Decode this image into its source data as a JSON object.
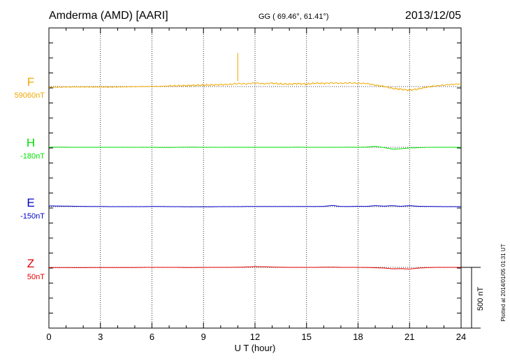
{
  "header": {
    "station": "Amderma (AMD)  [AARI]",
    "coords": "GG ( 69.46°,  61.41°)",
    "date": "2013/12/05"
  },
  "footer": {
    "plotted": "Plotted at 2014/01/05 01:31  UT"
  },
  "chart_data": {
    "type": "line",
    "xlabel": "U T (hour)",
    "xlim": [
      0,
      24
    ],
    "xticks": [
      "0",
      "3",
      "6",
      "9",
      "12",
      "15",
      "18",
      "21",
      "24"
    ],
    "scale_bar_label": "500 nT",
    "series": [
      {
        "name": "F",
        "baseline_label": "59060nT",
        "color": "#f0a800",
        "x": [
          0,
          0.5,
          1,
          1.5,
          2,
          2.5,
          3,
          3.5,
          4,
          4.5,
          5,
          5.5,
          6,
          6.5,
          7,
          7.5,
          8,
          8.5,
          9,
          9.5,
          10,
          10.5,
          11,
          11.5,
          12,
          12.5,
          13,
          13.5,
          14,
          14.5,
          15,
          15.5,
          16,
          16.5,
          17,
          17.5,
          18,
          18.5,
          19,
          19.5,
          20,
          20.5,
          21,
          21.5,
          22,
          22.5,
          23,
          23.5,
          24
        ],
        "values": [
          -5,
          -5,
          -4,
          -3,
          -3,
          -3,
          -3,
          -4,
          -3,
          -2,
          -1,
          1,
          1,
          2,
          5,
          6,
          8,
          10,
          12,
          13,
          16,
          17,
          25,
          22,
          30,
          23,
          28,
          22,
          20,
          25,
          20,
          28,
          26,
          30,
          27,
          30,
          28,
          25,
          12,
          2,
          -15,
          -22,
          -30,
          -20,
          -5,
          5,
          12,
          18,
          22
        ]
      },
      {
        "name": "H",
        "baseline_label": "-180nT",
        "color": "#00e000",
        "x": [
          0,
          0.5,
          1,
          1.5,
          2,
          2.5,
          3,
          3.5,
          4,
          4.5,
          5,
          5.5,
          6,
          6.5,
          7,
          7.5,
          8,
          8.5,
          9,
          9.5,
          10,
          10.5,
          11,
          11.5,
          12,
          12.5,
          13,
          13.5,
          14,
          14.5,
          15,
          15.5,
          16,
          16.5,
          17,
          17.5,
          18,
          18.5,
          19,
          19.5,
          20,
          20.5,
          21,
          21.5,
          22,
          22.5,
          23,
          23.5,
          24
        ],
        "values": [
          2,
          1,
          1,
          0,
          0,
          0,
          0,
          0,
          0,
          0,
          0,
          0,
          0,
          -1,
          -1,
          0,
          1,
          1,
          0,
          0,
          0,
          0,
          0,
          0,
          0,
          0,
          0,
          0,
          0,
          1,
          0,
          0,
          0,
          0,
          0,
          1,
          0,
          2,
          8,
          -2,
          -15,
          -12,
          -5,
          -3,
          0,
          0,
          0,
          0,
          0
        ]
      },
      {
        "name": "E",
        "baseline_label": "-150nT",
        "color": "#0000c8",
        "x": [
          0,
          0.5,
          1,
          1.5,
          2,
          2.5,
          3,
          3.5,
          4,
          4.5,
          5,
          5.5,
          6,
          6.5,
          7,
          7.5,
          8,
          8.5,
          9,
          9.5,
          10,
          10.5,
          11,
          11.5,
          12,
          12.5,
          13,
          13.5,
          14,
          14.5,
          15,
          15.5,
          16,
          16.5,
          17,
          17.5,
          18,
          18.5,
          19,
          19.5,
          20,
          20.5,
          21,
          21.5,
          22,
          22.5,
          23,
          23.5,
          24
        ],
        "values": [
          6,
          5,
          4,
          3,
          2,
          1,
          1,
          0,
          0,
          0,
          0,
          0,
          1,
          1,
          0,
          0,
          -1,
          -1,
          -1,
          -1,
          0,
          0,
          0,
          1,
          1,
          1,
          1,
          1,
          1,
          1,
          1,
          1,
          2,
          10,
          1,
          1,
          3,
          2,
          8,
          4,
          8,
          3,
          8,
          3,
          2,
          1,
          0,
          0,
          0
        ]
      },
      {
        "name": "Z",
        "baseline_label": "50nT",
        "color": "#e00000",
        "x": [
          0,
          0.5,
          1,
          1.5,
          2,
          2.5,
          3,
          3.5,
          4,
          4.5,
          5,
          5.5,
          6,
          6.5,
          7,
          7.5,
          8,
          8.5,
          9,
          9.5,
          10,
          10.5,
          11,
          11.5,
          12,
          12.5,
          13,
          13.5,
          14,
          14.5,
          15,
          15.5,
          16,
          16.5,
          17,
          17.5,
          18,
          18.5,
          19,
          19.5,
          20,
          20.5,
          21,
          21.5,
          22,
          22.5,
          23,
          23.5,
          24
        ],
        "values": [
          -1,
          -2,
          -2,
          -2,
          -2,
          -2,
          -1,
          -1,
          -1,
          -1,
          -1,
          0,
          0,
          0,
          0,
          0,
          -1,
          -1,
          0,
          0,
          0,
          0,
          1,
          3,
          6,
          5,
          3,
          1,
          0,
          0,
          0,
          0,
          1,
          2,
          0,
          0,
          0,
          -1,
          -3,
          -5,
          -12,
          -10,
          -14,
          -6,
          -2,
          0,
          0,
          0,
          0
        ]
      }
    ]
  }
}
